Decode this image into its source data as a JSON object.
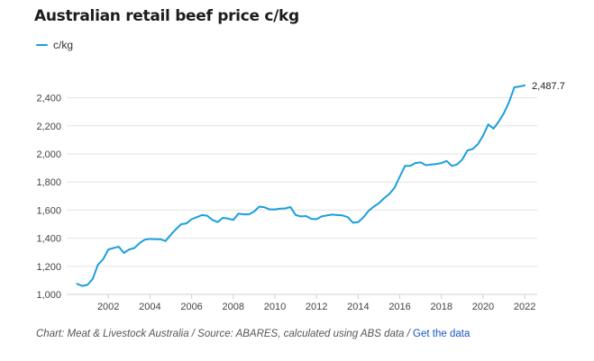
{
  "colors": {
    "line": "#1b9fdc",
    "grid": "#e3e3e3",
    "axis": "#d0d0d0"
  },
  "chart_data": {
    "type": "line",
    "title": "Australian retail beef price c/kg",
    "legend": "c/kg",
    "legend_position": "top-left",
    "grid": true,
    "end_value_label": "2,487.7",
    "x_range": [
      2000.0,
      2022.6
    ],
    "ylim": [
      1000,
      2500
    ],
    "y_ticks": [
      1000,
      1200,
      1400,
      1600,
      1800,
      2000,
      2200,
      2400
    ],
    "y_tick_labels": [
      "1,000",
      "1,200",
      "1,400",
      "1,600",
      "1,800",
      "2,000",
      "2,200",
      "2,400"
    ],
    "x_ticks": [
      2002,
      2004,
      2006,
      2008,
      2010,
      2012,
      2014,
      2016,
      2018,
      2020,
      2022
    ],
    "x_tick_labels": [
      "2002",
      "2004",
      "2006",
      "2008",
      "2010",
      "2012",
      "2014",
      "2016",
      "2018",
      "2020",
      "2022"
    ],
    "series": [
      {
        "name": "c/kg",
        "points": [
          [
            2000.5,
            1075
          ],
          [
            2000.75,
            1060
          ],
          [
            2001.0,
            1068
          ],
          [
            2001.25,
            1110
          ],
          [
            2001.5,
            1210
          ],
          [
            2001.75,
            1250
          ],
          [
            2002.0,
            1320
          ],
          [
            2002.25,
            1330
          ],
          [
            2002.5,
            1340
          ],
          [
            2002.75,
            1295
          ],
          [
            2003.0,
            1320
          ],
          [
            2003.25,
            1330
          ],
          [
            2003.5,
            1365
          ],
          [
            2003.75,
            1390
          ],
          [
            2004.0,
            1395
          ],
          [
            2004.25,
            1392
          ],
          [
            2004.5,
            1392
          ],
          [
            2004.75,
            1380
          ],
          [
            2005.0,
            1425
          ],
          [
            2005.25,
            1465
          ],
          [
            2005.5,
            1500
          ],
          [
            2005.75,
            1505
          ],
          [
            2006.0,
            1535
          ],
          [
            2006.25,
            1550
          ],
          [
            2006.5,
            1565
          ],
          [
            2006.75,
            1560
          ],
          [
            2007.0,
            1530
          ],
          [
            2007.25,
            1515
          ],
          [
            2007.5,
            1545
          ],
          [
            2007.75,
            1540
          ],
          [
            2008.0,
            1530
          ],
          [
            2008.25,
            1575
          ],
          [
            2008.5,
            1570
          ],
          [
            2008.75,
            1570
          ],
          [
            2009.0,
            1590
          ],
          [
            2009.25,
            1625
          ],
          [
            2009.5,
            1620
          ],
          [
            2009.75,
            1605
          ],
          [
            2010.0,
            1605
          ],
          [
            2010.25,
            1610
          ],
          [
            2010.5,
            1612
          ],
          [
            2010.75,
            1622
          ],
          [
            2011.0,
            1565
          ],
          [
            2011.25,
            1555
          ],
          [
            2011.5,
            1558
          ],
          [
            2011.75,
            1538
          ],
          [
            2012.0,
            1535
          ],
          [
            2012.25,
            1555
          ],
          [
            2012.5,
            1562
          ],
          [
            2012.75,
            1568
          ],
          [
            2013.0,
            1565
          ],
          [
            2013.25,
            1562
          ],
          [
            2013.5,
            1550
          ],
          [
            2013.75,
            1510
          ],
          [
            2014.0,
            1515
          ],
          [
            2014.25,
            1548
          ],
          [
            2014.5,
            1595
          ],
          [
            2014.75,
            1625
          ],
          [
            2015.0,
            1650
          ],
          [
            2015.25,
            1685
          ],
          [
            2015.5,
            1715
          ],
          [
            2015.75,
            1760
          ],
          [
            2016.0,
            1840
          ],
          [
            2016.25,
            1915
          ],
          [
            2016.5,
            1915
          ],
          [
            2016.75,
            1935
          ],
          [
            2017.0,
            1940
          ],
          [
            2017.25,
            1920
          ],
          [
            2017.5,
            1925
          ],
          [
            2017.75,
            1928
          ],
          [
            2018.0,
            1935
          ],
          [
            2018.25,
            1950
          ],
          [
            2018.5,
            1915
          ],
          [
            2018.75,
            1925
          ],
          [
            2019.0,
            1960
          ],
          [
            2019.25,
            2025
          ],
          [
            2019.5,
            2035
          ],
          [
            2019.75,
            2070
          ],
          [
            2020.0,
            2130
          ],
          [
            2020.25,
            2210
          ],
          [
            2020.5,
            2180
          ],
          [
            2020.75,
            2230
          ],
          [
            2021.0,
            2290
          ],
          [
            2021.25,
            2370
          ],
          [
            2021.5,
            2475
          ],
          [
            2021.75,
            2480
          ],
          [
            2022.0,
            2487.7
          ]
        ]
      }
    ]
  },
  "footer": {
    "caption": "Chart: Meat & Livestock Australia / Source: ABARES, calculated using ABS data / ",
    "link_label": "Get the data"
  }
}
